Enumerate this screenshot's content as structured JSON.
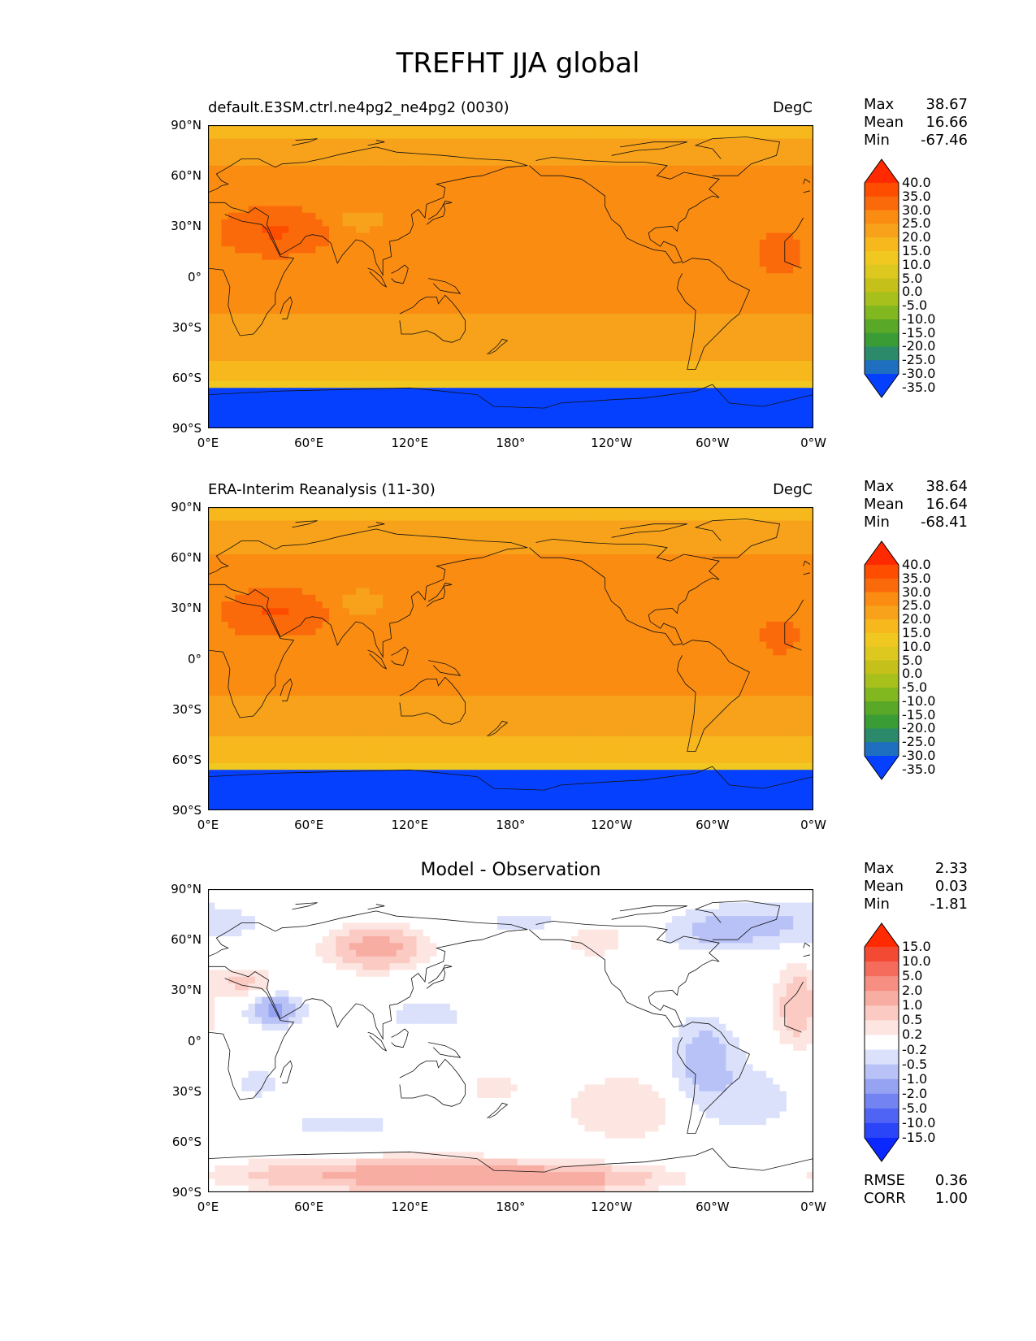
{
  "figure_title": "TREFHT JJA global",
  "x_ticks": [
    "0°E",
    "60°E",
    "120°E",
    "180°",
    "120°W",
    "60°W",
    "0°W"
  ],
  "y_ticks": [
    "90°N",
    "60°N",
    "30°N",
    "0°",
    "30°S",
    "60°S",
    "90°S"
  ],
  "panels": [
    {
      "title_left": "default.E3SM.ctrl.ne4pg2_ne4pg2 (0030)",
      "title_right": "DegC",
      "stats": [
        {
          "label": "Max",
          "value": "38.67"
        },
        {
          "label": "Mean",
          "value": "16.66"
        },
        {
          "label": "Min",
          "value": "-67.46"
        }
      ],
      "colorbar_labels": [
        "40.0",
        "35.0",
        "30.0",
        "25.0",
        "20.0",
        "15.0",
        "10.0",
        "5.0",
        "0.0",
        "-5.0",
        "-10.0",
        "-15.0",
        "-20.0",
        "-25.0",
        "-30.0",
        "-35.0"
      ]
    },
    {
      "title_left": "ERA-Interim Reanalysis (11-30)",
      "title_right": "DegC",
      "stats": [
        {
          "label": "Max",
          "value": "38.64"
        },
        {
          "label": "Mean",
          "value": "16.64"
        },
        {
          "label": "Min",
          "value": "-68.41"
        }
      ],
      "colorbar_labels": [
        "40.0",
        "35.0",
        "30.0",
        "25.0",
        "20.0",
        "15.0",
        "10.0",
        "5.0",
        "0.0",
        "-5.0",
        "-10.0",
        "-15.0",
        "-20.0",
        "-25.0",
        "-30.0",
        "-35.0"
      ]
    },
    {
      "title_center": "Model - Observation",
      "stats": [
        {
          "label": "Max",
          "value": "2.33"
        },
        {
          "label": "Mean",
          "value": "0.03"
        },
        {
          "label": "Min",
          "value": "-1.81"
        }
      ],
      "colorbar_labels": [
        "15.0",
        "10.0",
        "5.0",
        "2.0",
        "1.0",
        "0.5",
        "0.2",
        "-0.2",
        "-0.5",
        "-1.0",
        "-2.0",
        "-5.0",
        "-10.0",
        "-15.0"
      ],
      "metrics": [
        {
          "label": "RMSE",
          "value": "0.36"
        },
        {
          "label": "CORR",
          "value": "1.00"
        }
      ]
    }
  ],
  "colors": {
    "temp_scale": [
      "#ff2a00",
      "#ff4d00",
      "#fb6a0a",
      "#fa8c12",
      "#f7a21a",
      "#f7b81e",
      "#f0c820",
      "#dcc81e",
      "#c5c01a",
      "#a7c01b",
      "#82b81f",
      "#5aa827",
      "#3a9c35",
      "#2a8a6a",
      "#1e6fc0",
      "#0640ff"
    ],
    "diff_scale": [
      "#ff2a00",
      "#f34a34",
      "#f56b5c",
      "#f68f82",
      "#f8ada3",
      "#fbcac2",
      "#fde6e2",
      "#ffffff",
      "#dbe0fb",
      "#b9c2f7",
      "#96a3f3",
      "#7383f2",
      "#4f63f5",
      "#2a44f8",
      "#0a28ff"
    ]
  }
}
